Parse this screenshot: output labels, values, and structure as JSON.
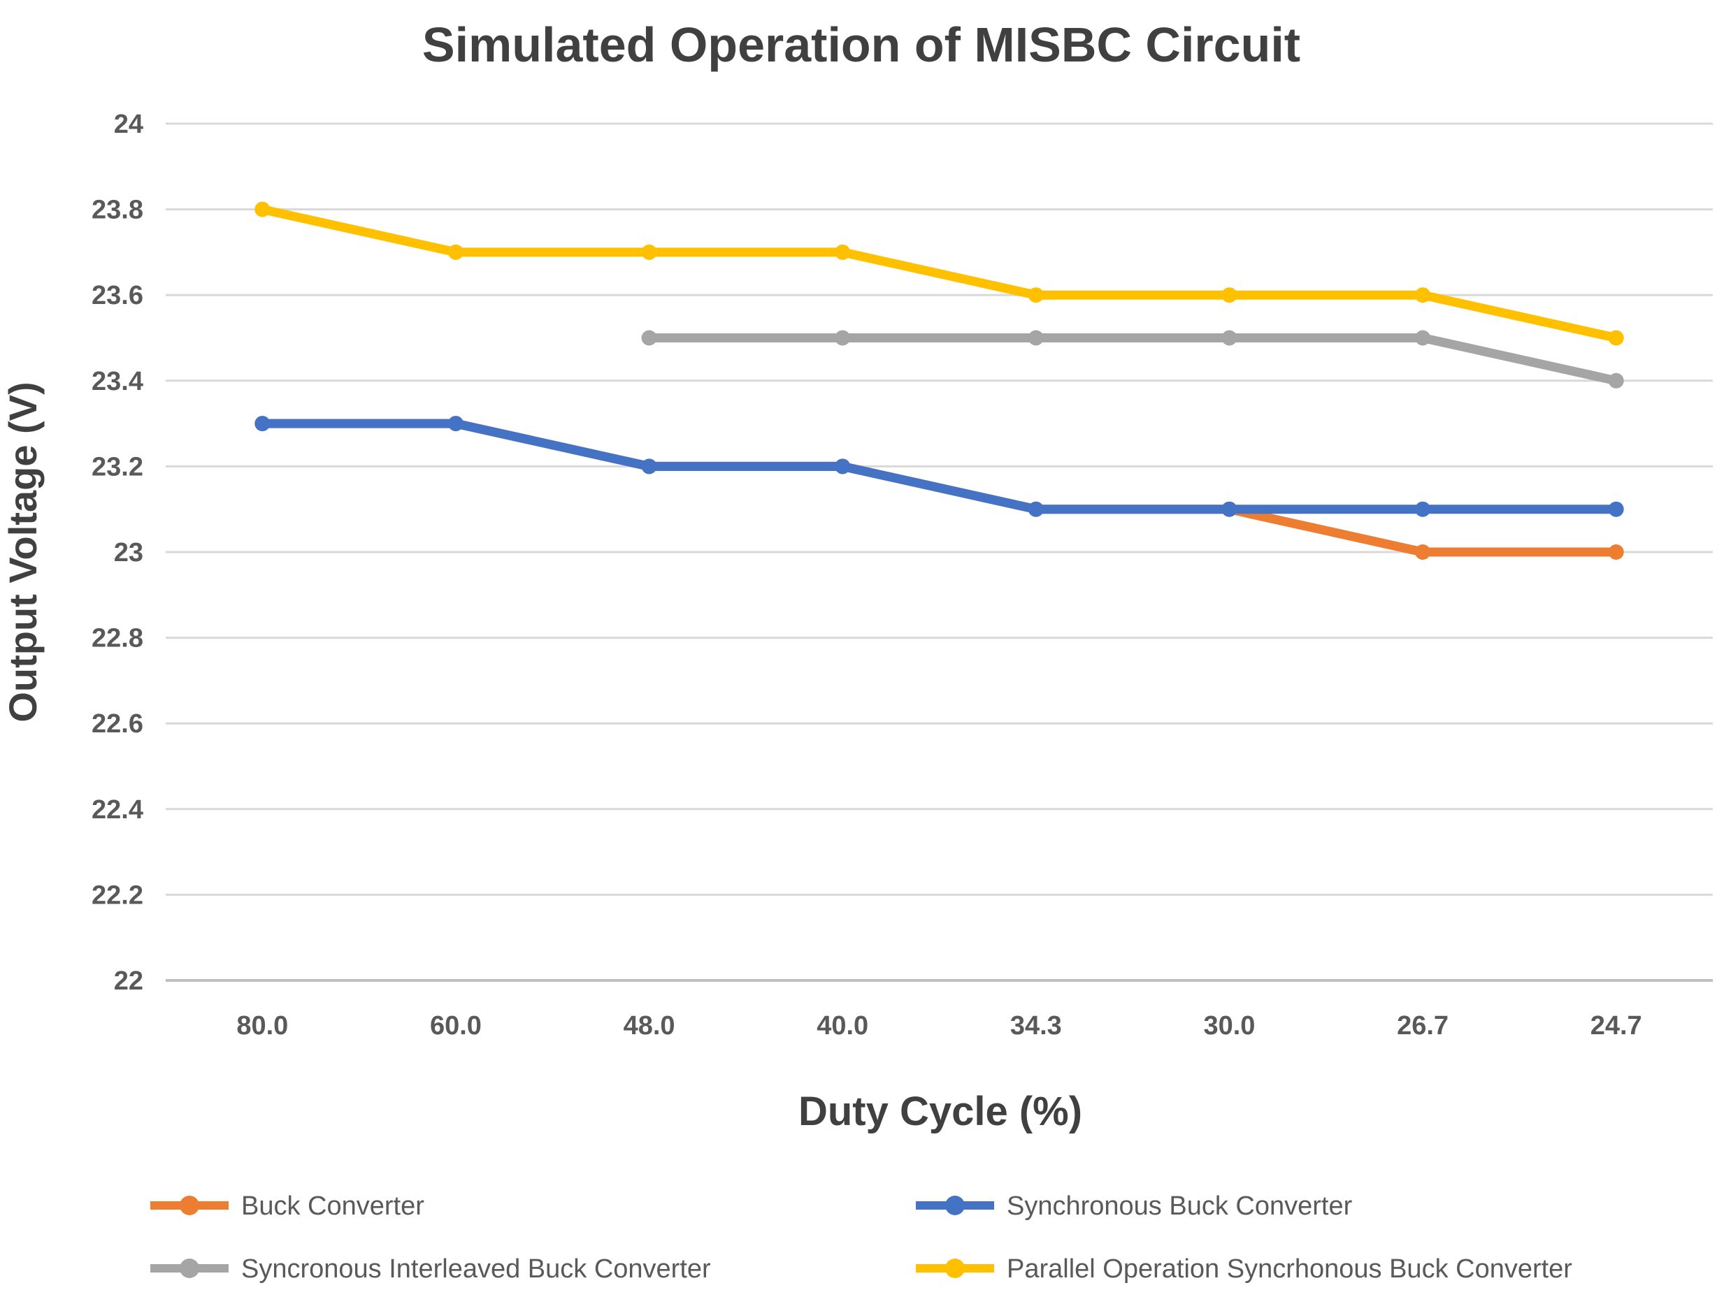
{
  "title": "Simulated Operation of MISBC Circuit",
  "x_axis_title": "Duty Cycle (%)",
  "y_axis_title": "Output Voltage (V)",
  "colors": {
    "title_text": "#404040",
    "tick_text": "#595959",
    "gridline": "#D9D9D9",
    "axis_line": "#BFBFBF",
    "background": "#FFFFFF",
    "series_orange": "#ED7D31",
    "series_blue": "#4472C4",
    "series_gray": "#A5A5A5",
    "series_yellow": "#FFC000"
  },
  "chart_data": {
    "type": "line",
    "title": "Simulated Operation of MISBC Circuit",
    "xlabel": "Duty Cycle (%)",
    "ylabel": "Output Voltage (V)",
    "categories": [
      "80.0",
      "60.0",
      "48.0",
      "40.0",
      "34.3",
      "30.0",
      "26.7",
      "24.7"
    ],
    "y_ticks": [
      "24",
      "23.8",
      "23.6",
      "23.4",
      "23.2",
      "23",
      "22.8",
      "22.6",
      "22.4",
      "22.2",
      "22"
    ],
    "y_tick_values": [
      24,
      23.8,
      23.6,
      23.4,
      23.2,
      23,
      22.8,
      22.6,
      22.4,
      22.2,
      22
    ],
    "ylim": [
      22,
      24
    ],
    "grid": true,
    "legend_position": "bottom",
    "marker": "circle",
    "series": [
      {
        "name": "Buck Converter",
        "color": "#ED7D31",
        "values": [
          23.3,
          23.3,
          23.2,
          23.2,
          23.1,
          23.1,
          23.0,
          23.0
        ],
        "legend_row": 0,
        "legend_col": 0
      },
      {
        "name": "Synchronous Buck Converter",
        "color": "#4472C4",
        "values": [
          23.3,
          23.3,
          23.2,
          23.2,
          23.1,
          23.1,
          23.1,
          23.1
        ],
        "legend_row": 0,
        "legend_col": 1
      },
      {
        "name": "Syncronous Interleaved Buck Converter",
        "color": "#A5A5A5",
        "values": [
          null,
          null,
          23.5,
          23.5,
          23.5,
          23.5,
          23.5,
          23.4
        ],
        "legend_row": 1,
        "legend_col": 0
      },
      {
        "name": "Parallel Operation Syncrhonous Buck Converter",
        "color": "#FFC000",
        "values": [
          23.8,
          23.7,
          23.7,
          23.7,
          23.6,
          23.6,
          23.6,
          23.5
        ],
        "legend_row": 1,
        "legend_col": 1
      }
    ]
  }
}
